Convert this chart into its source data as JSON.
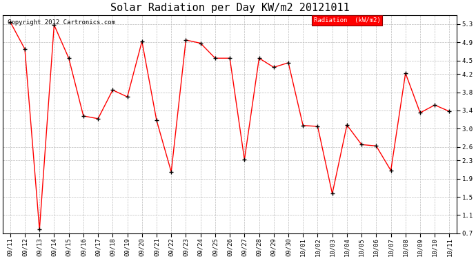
{
  "title": "Solar Radiation per Day KW/m2 20121011",
  "legend_label": "Radiation  (kW/m2)",
  "copyright": "Copyright 2012 Cartronics.com",
  "x_labels": [
    "09/11",
    "09/12",
    "09/13",
    "09/14",
    "09/15",
    "09/16",
    "09/17",
    "09/18",
    "09/19",
    "09/20",
    "09/21",
    "09/22",
    "09/23",
    "09/24",
    "09/25",
    "09/26",
    "09/27",
    "09/28",
    "09/29",
    "09/30",
    "10/01",
    "10/02",
    "10/03",
    "10/04",
    "10/05",
    "10/06",
    "10/07",
    "10/08",
    "10/09",
    "10/10",
    "10/11"
  ],
  "y_values": [
    5.35,
    4.75,
    0.78,
    5.28,
    4.55,
    3.28,
    3.22,
    3.85,
    3.7,
    4.92,
    3.18,
    2.05,
    4.95,
    4.88,
    4.55,
    4.55,
    2.32,
    4.55,
    4.35,
    4.45,
    3.07,
    3.05,
    1.57,
    3.08,
    2.65,
    2.62,
    2.08,
    4.22,
    3.35,
    3.52,
    3.38
  ],
  "ylim": [
    0.7,
    5.5
  ],
  "yticks": [
    0.7,
    1.1,
    1.5,
    1.9,
    2.3,
    2.6,
    3.0,
    3.4,
    3.8,
    4.2,
    4.5,
    4.9,
    5.3
  ],
  "line_color": "red",
  "marker_color": "black",
  "bg_color": "#ffffff",
  "plot_bg_color": "#ffffff",
  "grid_color": "#bbbbbb",
  "legend_bg": "red",
  "legend_fg": "white",
  "title_fontsize": 11,
  "tick_fontsize": 6.5,
  "copyright_fontsize": 6.5
}
